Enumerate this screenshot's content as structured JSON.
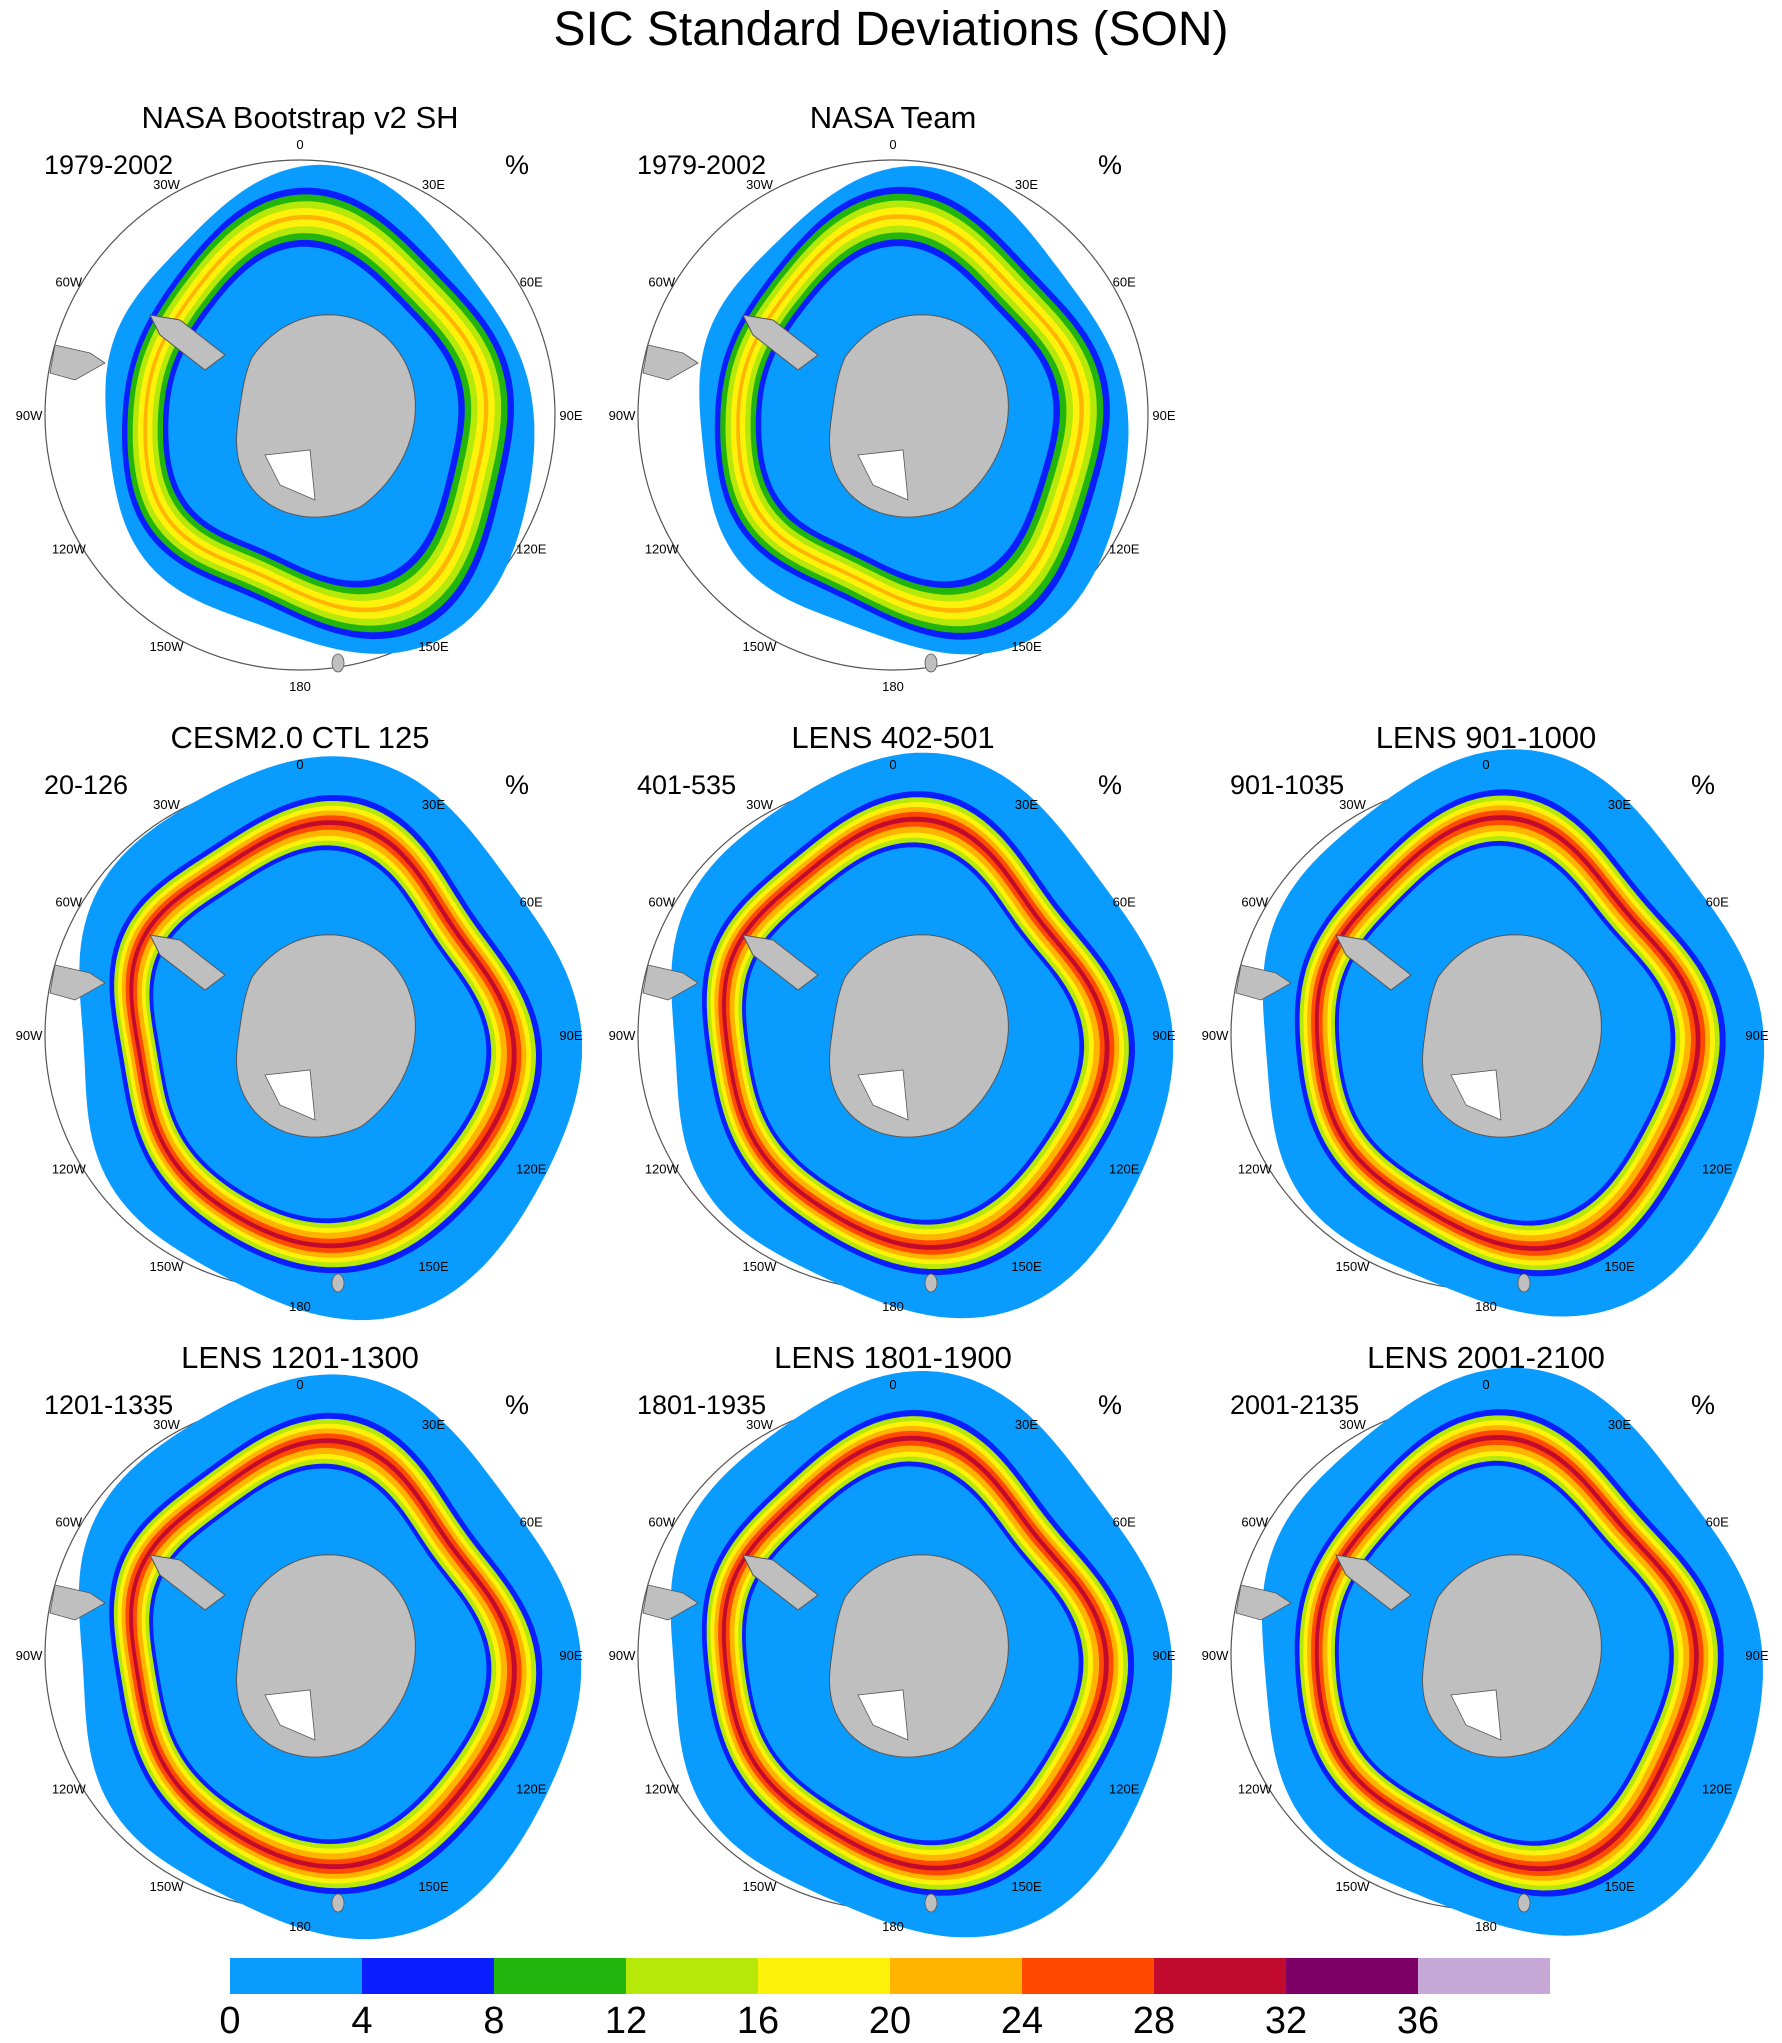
{
  "title": "SIC Standard Deviations (SON)",
  "panels": [
    {
      "title": "NASA Bootstrap v2 SH",
      "years": "1979-2002",
      "unit": "%",
      "type": "obs",
      "asym": 1.0
    },
    {
      "title": "NASA Team",
      "years": "1979-2002",
      "unit": "%",
      "type": "obs",
      "asym": 0.9
    },
    {
      "title": "CESM2.0 CTL 125",
      "years": "20-126",
      "unit": "%",
      "type": "model",
      "asym": 0.2
    },
    {
      "title": "LENS 402-501",
      "years": "401-535",
      "unit": "%",
      "type": "model",
      "asym": 0.4
    },
    {
      "title": "LENS 901-1000",
      "years": "901-1035",
      "unit": "%",
      "type": "model",
      "asym": 0.6
    },
    {
      "title": "LENS 1201-1300",
      "years": "1201-1335",
      "unit": "%",
      "type": "model",
      "asym": 0.3
    },
    {
      "title": "LENS 1801-1900",
      "years": "1801-1935",
      "unit": "%",
      "type": "model",
      "asym": 0.5
    },
    {
      "title": "LENS 2001-2100",
      "years": "2001-2135",
      "unit": "%",
      "type": "model",
      "asym": 0.7
    }
  ],
  "longitude_labels": [
    "0",
    "30E",
    "60E",
    "90E",
    "120E",
    "150E",
    "180",
    "150W",
    "120W",
    "90W",
    "60W",
    "30W"
  ],
  "colorbar": {
    "levels": [
      "0",
      "4",
      "8",
      "12",
      "16",
      "20",
      "24",
      "28",
      "32",
      "36"
    ],
    "colors": [
      "#0a9bff",
      "#0a1eff",
      "#21b50d",
      "#b6e80a",
      "#fff20a",
      "#ffb400",
      "#ff4a00",
      "#c10a2e",
      "#7d0067",
      "#c7a7d6"
    ]
  },
  "colors": {
    "land": "#bfbfbf",
    "coast": "#555555",
    "circle": "#555555"
  }
}
